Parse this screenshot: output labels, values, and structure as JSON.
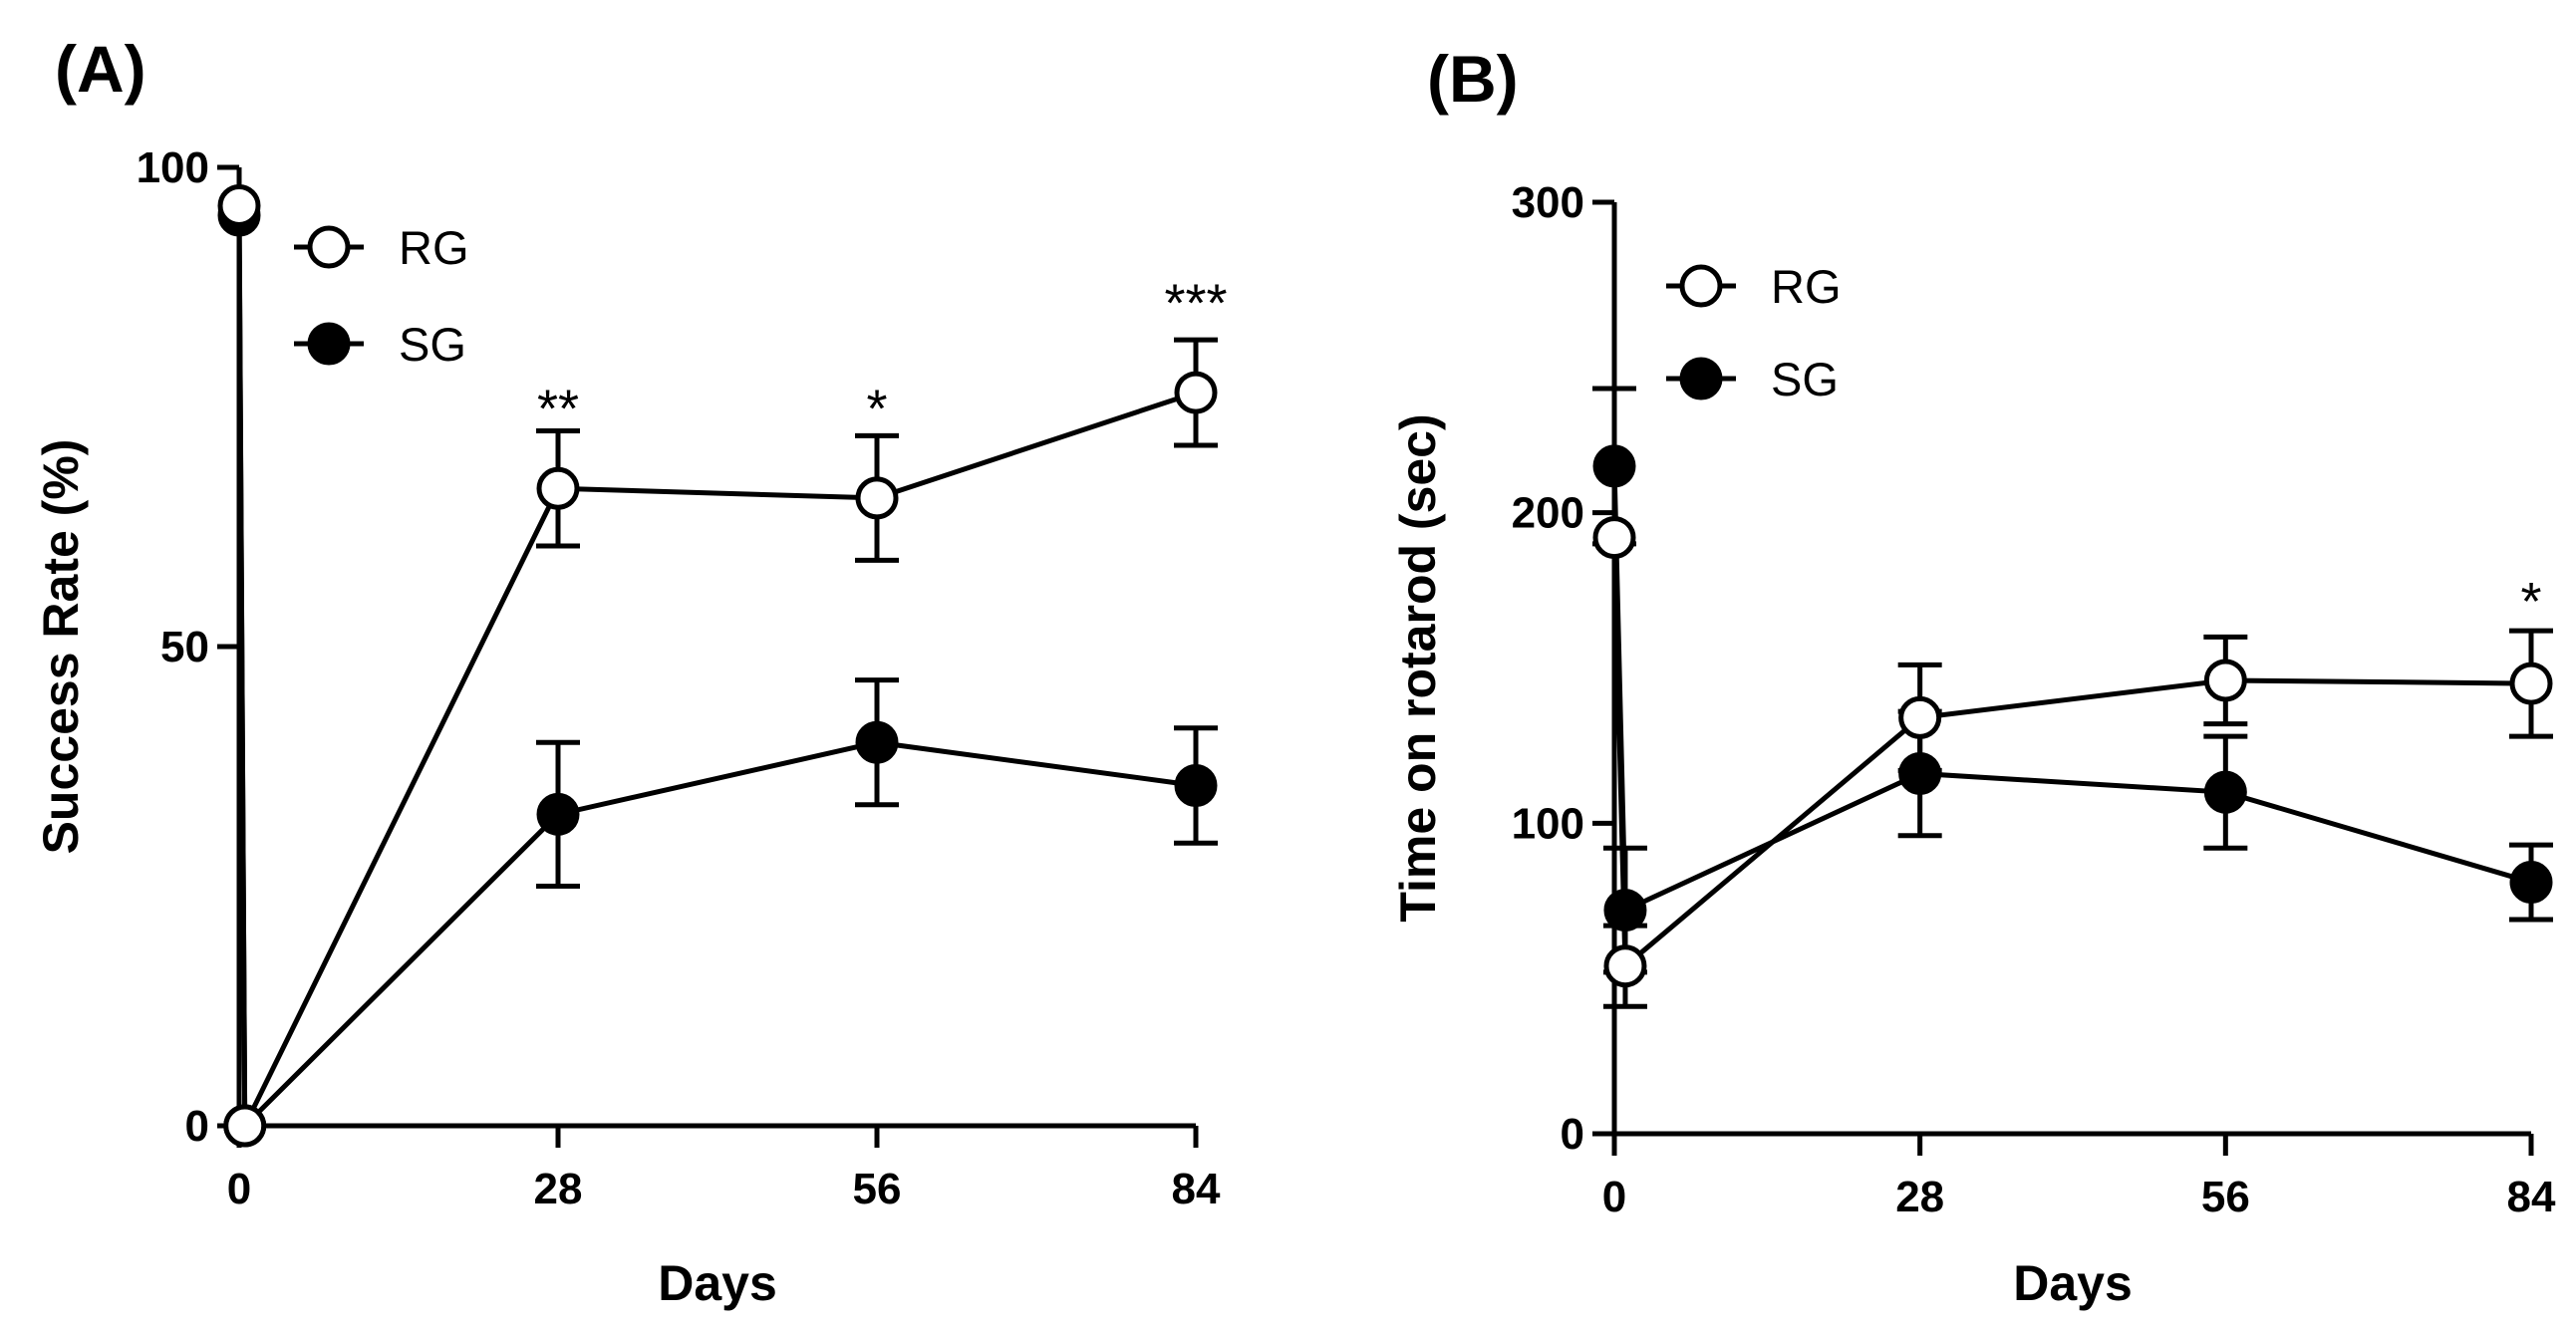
{
  "chart_data": [
    {
      "type": "line",
      "panel_label": "(A)",
      "xlabel": "Days",
      "ylabel": "Success Rate (%)",
      "xlim": [
        0,
        84
      ],
      "ylim": [
        0,
        100
      ],
      "x_ticks": [
        0,
        28,
        56,
        84
      ],
      "y_ticks": [
        0,
        50,
        100
      ],
      "x_tick_labels": [
        "0",
        "28",
        "56",
        "84"
      ],
      "y_tick_labels": [
        "0",
        "50",
        "100"
      ],
      "legend": [
        "RG",
        "SG"
      ],
      "legend_position": "top-left",
      "series": [
        {
          "name": "RG",
          "marker": "open-circle",
          "x": [
            0,
            0.5,
            28,
            56,
            84
          ],
          "y": [
            96,
            0,
            66.5,
            65.5,
            76.5
          ],
          "error": [
            0,
            0,
            6,
            6.5,
            5.5
          ]
        },
        {
          "name": "SG",
          "marker": "filled-circle",
          "x": [
            0,
            0.5,
            28,
            56,
            84
          ],
          "y": [
            95,
            0,
            32.5,
            40,
            35.5
          ],
          "error": [
            0,
            0,
            7.5,
            6.5,
            6
          ]
        }
      ],
      "annotations": [
        {
          "x": 28,
          "y": 75,
          "text": "**"
        },
        {
          "x": 56,
          "y": 75,
          "text": "*"
        },
        {
          "x": 84,
          "y": 86,
          "text": "***"
        }
      ]
    },
    {
      "type": "line",
      "panel_label": "(B)",
      "xlabel": "Days",
      "ylabel": "Time on rotarod (sec)",
      "xlim": [
        0,
        84
      ],
      "ylim": [
        0,
        300
      ],
      "x_ticks": [
        0,
        28,
        56,
        84
      ],
      "y_ticks": [
        0,
        100,
        200,
        300
      ],
      "x_tick_labels": [
        "0",
        "28",
        "56",
        "84"
      ],
      "y_tick_labels": [
        "0",
        "100",
        "200",
        "300"
      ],
      "legend": [
        "RG",
        "SG"
      ],
      "legend_position": "top-left",
      "series": [
        {
          "name": "RG",
          "marker": "open-circle",
          "x": [
            0,
            1,
            28,
            56,
            84
          ],
          "y": [
            192,
            54,
            134,
            146,
            145
          ],
          "error": [
            0,
            13,
            17,
            14,
            17
          ]
        },
        {
          "name": "SG",
          "marker": "filled-circle",
          "x": [
            0,
            1,
            28,
            56,
            84
          ],
          "y": [
            215,
            72,
            116,
            110,
            81
          ],
          "error": [
            25,
            20,
            20,
            18,
            12
          ]
        }
      ],
      "annotations": [
        {
          "x": 84,
          "y": 172,
          "text": "*"
        }
      ]
    }
  ]
}
